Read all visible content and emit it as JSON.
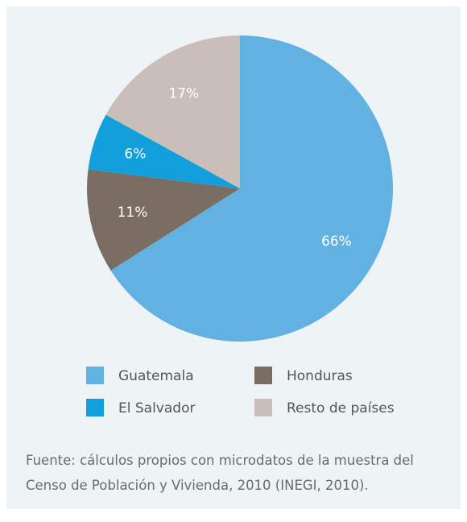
{
  "chart_data": {
    "type": "pie",
    "categories": [
      "Guatemala",
      "Honduras",
      "El Salvador",
      "Resto de países"
    ],
    "values": [
      66,
      11,
      6,
      17
    ],
    "value_labels": [
      "66%",
      "11%",
      "6%",
      "17%"
    ],
    "colors": [
      "#62b1e3",
      "#7a6e63",
      "#129fdc",
      "#c9bfb8"
    ],
    "source": "Fuente: cálculos propios con microdatos de la muestra del Censo de Población y Vivienda, 2010 (INEGI, 2010)."
  }
}
